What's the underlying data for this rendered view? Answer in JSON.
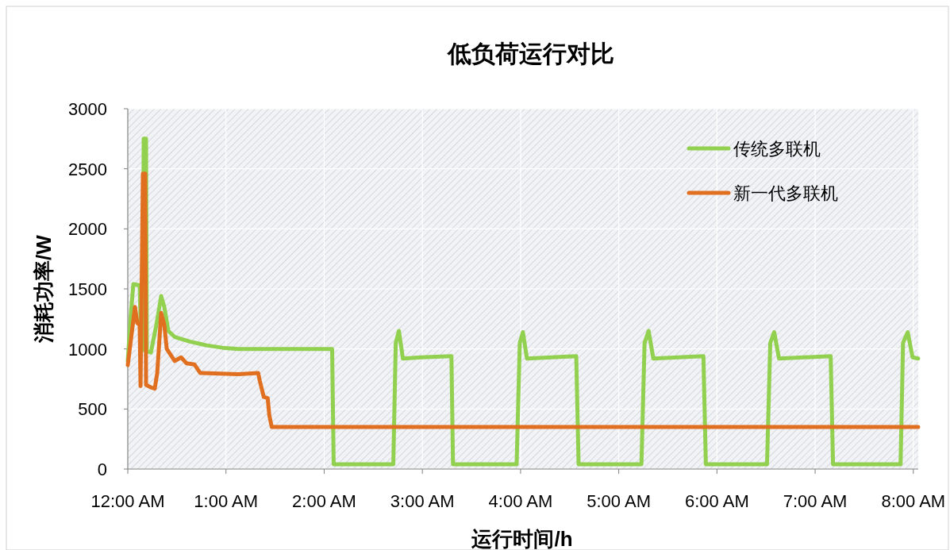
{
  "chart_data": {
    "type": "line",
    "title": "低负荷运行对比",
    "xlabel": "运行时间/h",
    "ylabel": "消耗功率/W",
    "xlim": [
      0,
      8.05
    ],
    "ylim": [
      0,
      3000
    ],
    "yticks": [
      0,
      500,
      1000,
      1500,
      2000,
      2500,
      3000
    ],
    "xticks": [
      {
        "value": 0,
        "label": "12:00 AM"
      },
      {
        "value": 1,
        "label": "1:00 AM"
      },
      {
        "value": 2,
        "label": "2:00 AM"
      },
      {
        "value": 3,
        "label": "3:00 AM"
      },
      {
        "value": 4,
        "label": "4:00 AM"
      },
      {
        "value": 5,
        "label": "5:00 AM"
      },
      {
        "value": 6,
        "label": "6:00 AM"
      },
      {
        "value": 7,
        "label": "7:00 AM"
      },
      {
        "value": 8,
        "label": "8:00 AM"
      }
    ],
    "grid": true,
    "legend": "top right",
    "line_style": "solid",
    "series": [
      {
        "name": "传统多联机",
        "color": "#92d050",
        "x": [
          0,
          0.032,
          0.057,
          0.121,
          0.138,
          0.154,
          0.162,
          0.186,
          0.194,
          0.235,
          0.291,
          0.34,
          0.372,
          0.413,
          0.478,
          0.559,
          0.64,
          0.802,
          0.964,
          1.126,
          2.057,
          2.081,
          2.097,
          2.704,
          2.729,
          2.761,
          2.802,
          2.988,
          3.296,
          3.312,
          3.96,
          3.992,
          4.024,
          4.065,
          4.567,
          4.591,
          5.231,
          5.263,
          5.304,
          5.352,
          5.862,
          5.887,
          6.51,
          6.543,
          6.583,
          6.632,
          7.158,
          7.182,
          7.87,
          7.895,
          7.943,
          7.992,
          8.049
        ],
        "values": [
          900,
          1300,
          1540,
          1530,
          1000,
          990,
          2750,
          2750,
          980,
          970,
          1200,
          1440,
          1350,
          1150,
          1100,
          1080,
          1060,
          1030,
          1010,
          1000,
          1000,
          1000,
          40,
          40,
          1050,
          1150,
          920,
          930,
          940,
          40,
          40,
          1050,
          1140,
          920,
          940,
          40,
          40,
          1050,
          1150,
          920,
          940,
          40,
          40,
          1050,
          1140,
          920,
          940,
          40,
          40,
          1050,
          1140,
          930,
          920
        ]
      },
      {
        "name": "新一代多联机",
        "color": "#e07020",
        "x": [
          0,
          0.073,
          0.097,
          0.121,
          0.13,
          0.154,
          0.178,
          0.186,
          0.235,
          0.275,
          0.3,
          0.34,
          0.372,
          0.397,
          0.437,
          0.478,
          0.543,
          0.599,
          0.68,
          0.737,
          1.126,
          1.328,
          1.344,
          1.385,
          1.425,
          1.441,
          1.466,
          8.049
        ],
        "values": [
          865,
          1350,
          1215,
          1200,
          690,
          2460,
          2460,
          700,
          680,
          670,
          800,
          1300,
          1200,
          1000,
          950,
          900,
          930,
          880,
          870,
          800,
          790,
          800,
          735,
          600,
          590,
          450,
          350,
          350
        ]
      }
    ]
  }
}
